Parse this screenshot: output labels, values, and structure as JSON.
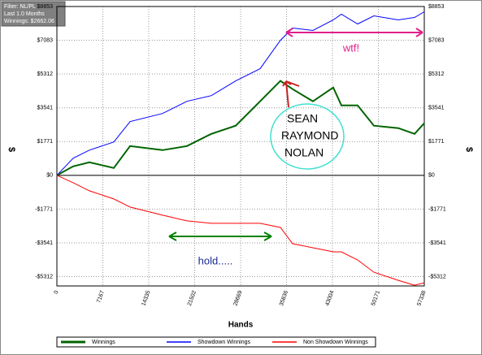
{
  "chart_data": {
    "type": "line",
    "filter": [
      "Filter: NL/PL",
      "Last 1.0 Months",
      "Winnings: $2662.06"
    ],
    "x_label": "Hands",
    "y_label": "$",
    "x": [
      0,
      2537,
      5074,
      8880,
      11417,
      16491,
      20296,
      24102,
      27907,
      31713,
      34884,
      36787,
      39958,
      43129,
      44398,
      46935,
      49472,
      53277,
      55814,
      57338
    ],
    "series": [
      {
        "name": "Winnings",
        "color": "#006400",
        "values": [
          0,
          469,
          683,
          384,
          1536,
          1323,
          1536,
          2176,
          2603,
          3883,
          4950,
          4523,
          3883,
          4608,
          3670,
          3670,
          2603,
          2475,
          2176,
          2731
        ]
      },
      {
        "name": "Showdown Winnings",
        "color": "#0000ff",
        "values": [
          0,
          896,
          1323,
          1750,
          2816,
          3243,
          3883,
          4182,
          4950,
          5590,
          7083,
          7723,
          7595,
          8150,
          8448,
          7936,
          8363,
          8150,
          8278,
          8576
        ]
      },
      {
        "name": "Non Showdown Winnings",
        "color": "#ff0000",
        "values": [
          0,
          -384,
          -811,
          -1237,
          -1664,
          -2091,
          -2390,
          -2517,
          -2517,
          -2517,
          -2731,
          -3584,
          -3798,
          -4011,
          -4011,
          -4438,
          -5078,
          -5504,
          -5760,
          -5632
        ]
      }
    ],
    "xlim": [
      0,
      57338
    ],
    "ylim": [
      -5800,
      8853
    ],
    "xticks": [
      0,
      7167,
      14335,
      21502,
      28669,
      35836,
      43004,
      50171,
      57338
    ],
    "yticks": [
      {
        "value": -5312,
        "label": "-$5312"
      },
      {
        "value": -3541,
        "label": "-$3541"
      },
      {
        "value": -1771,
        "label": "-$1771"
      },
      {
        "value": 0,
        "label": "$0"
      },
      {
        "value": 1771,
        "label": "$1771"
      },
      {
        "value": 3541,
        "label": "$3541"
      },
      {
        "value": 5312,
        "label": "$5312"
      },
      {
        "value": 7083,
        "label": "$7083"
      },
      {
        "value": 8853,
        "label": "$8853"
      }
    ],
    "grid": true,
    "annotations": [
      "wtf!",
      "SEAN",
      "RAYMOND",
      "NOLAN",
      "hold....."
    ]
  }
}
